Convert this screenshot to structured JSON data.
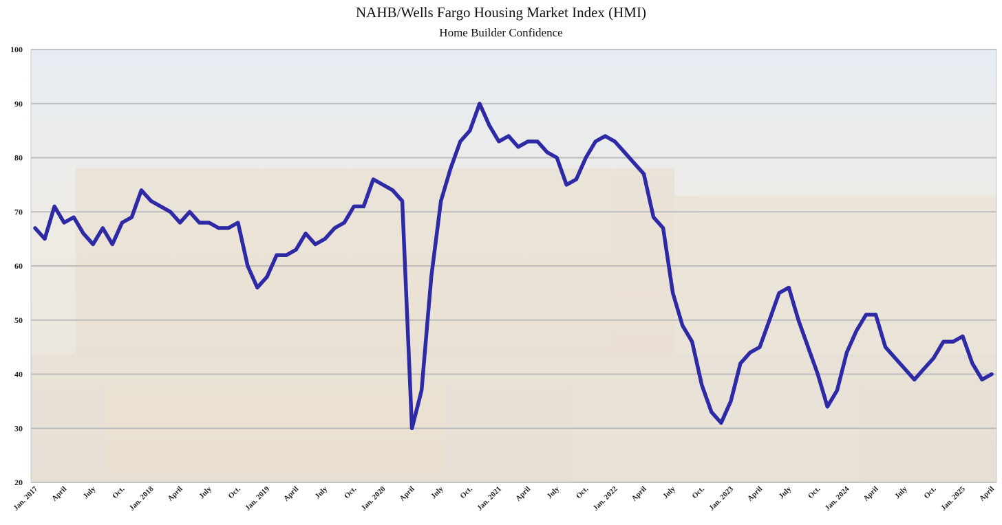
{
  "chart_data": {
    "type": "line",
    "title": "NAHB/Wells Fargo Housing Market Index (HMI)",
    "subtitle": "Home Builder Confidence",
    "xlabel": "",
    "ylabel": "",
    "ylim": [
      20,
      100
    ],
    "yticks": [
      20,
      30,
      40,
      50,
      60,
      70,
      80,
      90,
      100
    ],
    "grid": true,
    "legend": "none",
    "colors": {
      "line": "#2e2aa6",
      "grid": "#bdbdbd",
      "plot_bg": "#e9e3d8"
    },
    "x_tick_labels": [
      "Jan. 2017",
      "April",
      "July",
      "Oct.",
      "Jan. 2018",
      "April",
      "July",
      "Oct.",
      "Jan. 2019",
      "April",
      "July",
      "Oct.",
      "Jan. 2020",
      "April",
      "July",
      "Oct.",
      "Jan. 2021",
      "April",
      "July",
      "Oct.",
      "Jan. 2022",
      "April",
      "July",
      "Oct.",
      "Jan. 2023",
      "April",
      "July",
      "Oct.",
      "Jan. 2024",
      "April",
      "July",
      "Oct.",
      "Jan. 2025",
      "April"
    ],
    "series": [
      {
        "values": [
          67,
          65,
          71,
          68,
          69,
          66,
          64,
          67,
          64,
          68,
          69,
          74,
          72,
          71,
          70,
          68,
          70,
          68,
          68,
          67,
          67,
          68,
          60,
          56,
          58,
          62,
          62,
          63,
          66,
          64,
          65,
          67,
          68,
          71,
          71,
          76,
          75,
          74,
          72,
          30,
          37,
          58,
          72,
          78,
          83,
          85,
          90,
          86,
          83,
          84,
          82,
          83,
          83,
          81,
          80,
          75,
          76,
          80,
          83,
          84,
          83,
          81,
          79,
          77,
          69,
          67,
          55,
          49,
          46,
          38,
          33,
          31,
          35,
          42,
          44,
          45,
          50,
          55,
          56,
          50,
          45,
          40,
          34,
          37,
          44,
          48,
          51,
          51,
          45,
          43,
          41,
          39,
          41,
          43,
          46,
          46,
          47,
          42,
          39,
          40
        ]
      }
    ]
  }
}
